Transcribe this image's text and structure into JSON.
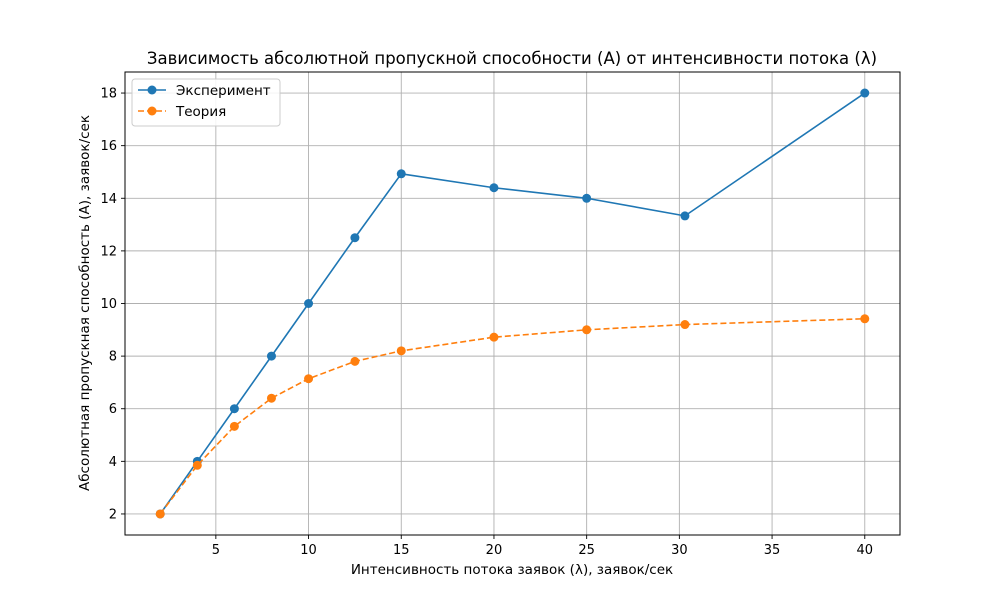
{
  "chart_data": {
    "type": "line",
    "title": "Зависимость абсолютной пропускной способности (A) от интенсивности потока (λ)",
    "xlabel": "Интенсивность потока заявок (λ), заявок/сек",
    "ylabel": "Абсолютная пропускная способность (A), заявок/сек",
    "xlim": [
      0.1,
      41.9
    ],
    "ylim": [
      1.2,
      18.8
    ],
    "xticks": [
      5,
      10,
      15,
      20,
      25,
      30,
      35,
      40
    ],
    "yticks": [
      2,
      4,
      6,
      8,
      10,
      12,
      14,
      16,
      18
    ],
    "grid": true,
    "legend_position": "upper-left",
    "series": [
      {
        "name": "Эксперимент",
        "color": "#1f77b4",
        "linestyle": "solid",
        "marker": "circle",
        "x": [
          2,
          4,
          6,
          8,
          10,
          12.5,
          15,
          20,
          25,
          30.3,
          40
        ],
        "y": [
          2,
          4,
          6,
          8,
          10,
          12.5,
          14.93,
          14.4,
          14,
          13.33,
          18
        ]
      },
      {
        "name": "Теория",
        "color": "#ff7f0e",
        "linestyle": "dashed",
        "marker": "circle",
        "x": [
          2,
          4,
          6,
          8,
          10,
          12.5,
          15,
          20,
          25,
          30.3,
          40
        ],
        "y": [
          2,
          3.85,
          5.33,
          6.4,
          7.14,
          7.8,
          8.2,
          8.72,
          9.0,
          9.2,
          9.42
        ]
      }
    ]
  }
}
